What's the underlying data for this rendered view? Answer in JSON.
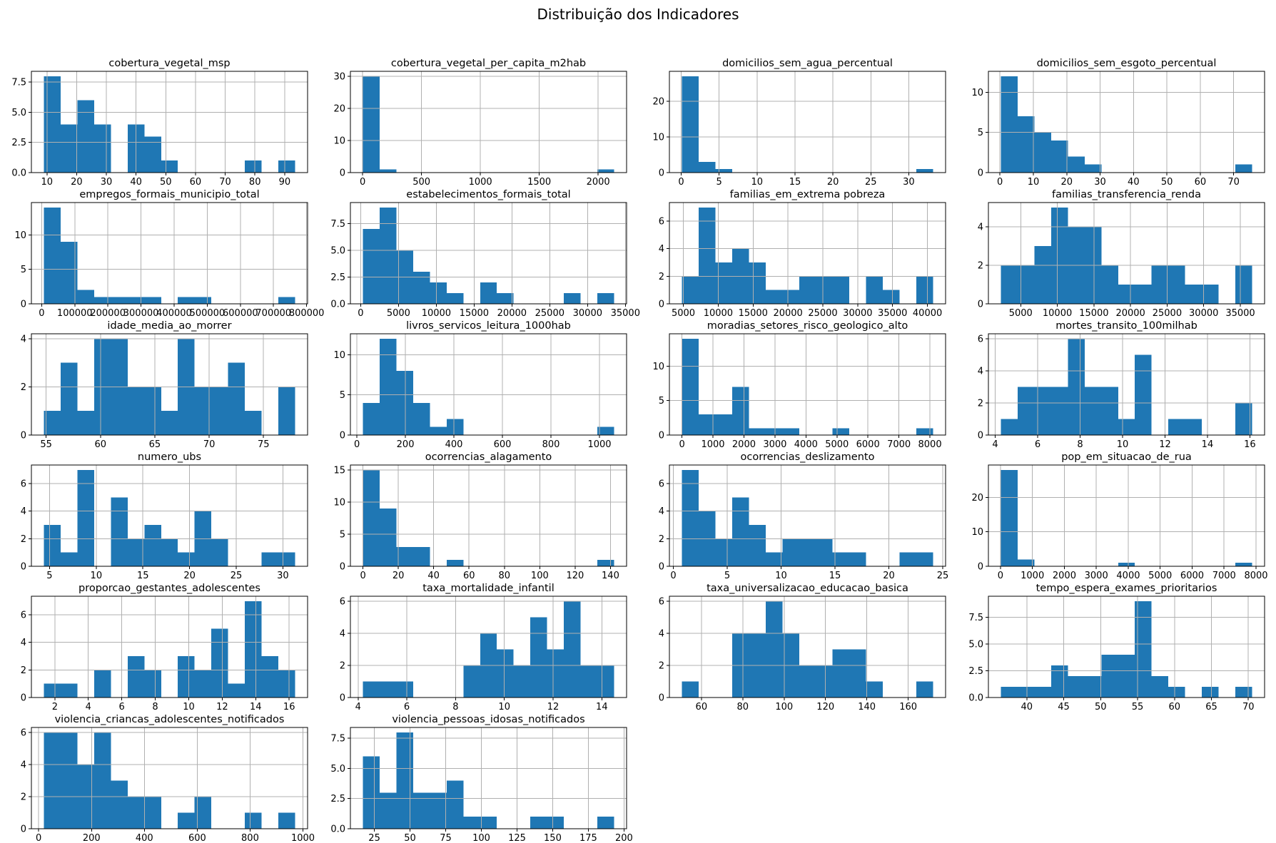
{
  "figure": {
    "suptitle": "Distribuição dos Indicadores",
    "bar_color": "#1f77b4",
    "grid_color": "#b0b0b0",
    "spine_color": "#000000",
    "text_color": "#000000"
  },
  "chart_data": [
    {
      "type": "histogram",
      "bins": 15,
      "title": "cobertura_vegetal_msp",
      "xmin": 9,
      "xmax": 93.5,
      "counts": [
        8,
        4,
        6,
        4,
        0,
        4,
        3,
        1,
        0,
        0,
        0,
        0,
        1,
        0,
        1
      ],
      "xticks": [
        10,
        20,
        30,
        40,
        50,
        60,
        70,
        80,
        90
      ],
      "yticks": [
        0,
        2.5,
        5,
        7.5
      ],
      "ydec": 1
    },
    {
      "type": "histogram",
      "bins": 15,
      "title": "cobertura_vegetal_per_capita_m2hab",
      "xmin": 3,
      "xmax": 2135,
      "counts": [
        30,
        1,
        0,
        0,
        0,
        0,
        0,
        0,
        0,
        0,
        0,
        0,
        0,
        0,
        1
      ],
      "xticks": [
        0,
        500,
        1000,
        1500,
        2000
      ],
      "yticks": [
        0,
        10,
        20,
        30
      ],
      "ydec": 0
    },
    {
      "type": "histogram",
      "bins": 15,
      "title": "domicilios_sem_agua_percentual",
      "xmin": 0.1,
      "xmax": 33.2,
      "counts": [
        27,
        3,
        1,
        0,
        0,
        0,
        0,
        0,
        0,
        0,
        0,
        0,
        0,
        0,
        1
      ],
      "xticks": [
        0,
        5,
        10,
        15,
        20,
        25,
        30
      ],
      "yticks": [
        0,
        10,
        20
      ],
      "ydec": 0
    },
    {
      "type": "histogram",
      "bins": 15,
      "title": "domicilios_sem_esgoto_percentual",
      "xmin": 0.3,
      "xmax": 75.5,
      "counts": [
        12,
        7,
        5,
        4,
        2,
        1,
        0,
        0,
        0,
        0,
        0,
        0,
        0,
        0,
        1
      ],
      "xticks": [
        0,
        10,
        20,
        30,
        40,
        50,
        60,
        70
      ],
      "yticks": [
        0,
        5,
        10
      ],
      "ydec": 0
    },
    {
      "type": "histogram",
      "bins": 15,
      "title": "empregos_formais_municipio_total",
      "xmin": 7000,
      "xmax": 765000,
      "counts": [
        14,
        9,
        2,
        1,
        1,
        1,
        1,
        0,
        1,
        1,
        0,
        0,
        0,
        0,
        1
      ],
      "xticks": [
        0,
        100000,
        200000,
        300000,
        400000,
        500000,
        600000,
        700000,
        800000
      ],
      "yticks": [
        0,
        5,
        10
      ],
      "ydec": 0
    },
    {
      "type": "histogram",
      "bins": 15,
      "title": "estabelecimentos_formais_total",
      "xmin": 300,
      "xmax": 33500,
      "counts": [
        7,
        9,
        5,
        3,
        2,
        1,
        0,
        2,
        1,
        0,
        0,
        0,
        1,
        0,
        1
      ],
      "xticks": [
        0,
        5000,
        10000,
        15000,
        20000,
        25000,
        30000,
        35000
      ],
      "yticks": [
        0,
        2.5,
        5,
        7.5
      ],
      "ydec": 1
    },
    {
      "type": "histogram",
      "bins": 15,
      "title": "familias_em_extrema pobreza",
      "xmin": 4800,
      "xmax": 40800,
      "counts": [
        2,
        7,
        3,
        4,
        3,
        1,
        1,
        2,
        2,
        2,
        0,
        2,
        1,
        0,
        2
      ],
      "xticks": [
        5000,
        10000,
        15000,
        20000,
        25000,
        30000,
        35000,
        40000
      ],
      "yticks": [
        0,
        2,
        4,
        6
      ],
      "ydec": 0
    },
    {
      "type": "histogram",
      "bins": 15,
      "title": "familias_transferencia_renda",
      "xmin": 2300,
      "xmax": 36600,
      "counts": [
        2,
        2,
        3,
        5,
        4,
        4,
        2,
        1,
        1,
        2,
        2,
        1,
        1,
        0,
        2
      ],
      "xticks": [
        5000,
        10000,
        15000,
        20000,
        25000,
        30000,
        35000
      ],
      "yticks": [
        0,
        2,
        4
      ],
      "ydec": 0
    },
    {
      "type": "histogram",
      "bins": 15,
      "title": "idade_media_ao_morrer",
      "xmin": 54.8,
      "xmax": 77.9,
      "counts": [
        1,
        3,
        1,
        4,
        4,
        2,
        2,
        1,
        4,
        2,
        2,
        3,
        1,
        0,
        2
      ],
      "xticks": [
        55,
        60,
        65,
        70,
        75
      ],
      "yticks": [
        0,
        2,
        4
      ],
      "ydec": 0
    },
    {
      "type": "histogram",
      "bins": 15,
      "title": "livros_servicos_leitura_1000hab",
      "xmin": 25,
      "xmax": 1060,
      "counts": [
        4,
        12,
        8,
        4,
        1,
        2,
        0,
        0,
        0,
        0,
        0,
        0,
        0,
        0,
        1
      ],
      "xticks": [
        0,
        200,
        400,
        600,
        800,
        1000
      ],
      "yticks": [
        0,
        5,
        10
      ],
      "ydec": 0
    },
    {
      "type": "histogram",
      "bins": 15,
      "title": "moradias_setores_risco_geologico_alto",
      "xmin": 0,
      "xmax": 8100,
      "counts": [
        14,
        3,
        3,
        7,
        1,
        1,
        1,
        0,
        0,
        1,
        0,
        0,
        0,
        0,
        1
      ],
      "xticks": [
        0,
        1000,
        2000,
        3000,
        4000,
        5000,
        6000,
        7000,
        8000
      ],
      "yticks": [
        0,
        5,
        10
      ],
      "ydec": 0
    },
    {
      "type": "histogram",
      "bins": 15,
      "title": "mortes_transito_100milhab",
      "xmin": 4.27,
      "xmax": 16.1,
      "counts": [
        1,
        3,
        3,
        3,
        6,
        3,
        3,
        1,
        5,
        0,
        1,
        1,
        0,
        0,
        2
      ],
      "xticks": [
        4,
        6,
        8,
        10,
        12,
        14,
        16
      ],
      "yticks": [
        0,
        2,
        4,
        6
      ],
      "ydec": 0
    },
    {
      "type": "histogram",
      "bins": 15,
      "title": "numero_ubs",
      "xmin": 4.4,
      "xmax": 31.3,
      "counts": [
        3,
        1,
        7,
        0,
        5,
        2,
        3,
        2,
        1,
        4,
        2,
        0,
        0,
        1,
        1
      ],
      "xticks": [
        5,
        10,
        15,
        20,
        25,
        30
      ],
      "yticks": [
        0,
        2,
        4,
        6
      ],
      "ydec": 0
    },
    {
      "type": "histogram",
      "bins": 15,
      "title": "ocorrencias_alagamento",
      "xmin": 0,
      "xmax": 142,
      "counts": [
        15,
        9,
        3,
        3,
        0,
        1,
        0,
        0,
        0,
        0,
        0,
        0,
        0,
        0,
        1
      ],
      "xticks": [
        0,
        20,
        40,
        60,
        80,
        100,
        120,
        140
      ],
      "yticks": [
        0,
        5,
        10,
        15
      ],
      "ydec": 0
    },
    {
      "type": "histogram",
      "bins": 15,
      "title": "ocorrencias_deslizamento",
      "xmin": 0.8,
      "xmax": 24.1,
      "counts": [
        7,
        4,
        2,
        5,
        3,
        1,
        2,
        2,
        2,
        1,
        1,
        0,
        0,
        1,
        1
      ],
      "xticks": [
        0,
        5,
        10,
        15,
        20,
        25
      ],
      "yticks": [
        0,
        2,
        4,
        6
      ],
      "ydec": 0
    },
    {
      "type": "histogram",
      "bins": 15,
      "title": "pop_em_situacao_de_rua",
      "xmin": 15,
      "xmax": 7875,
      "counts": [
        28,
        2,
        0,
        0,
        0,
        0,
        0,
        1,
        0,
        0,
        0,
        0,
        0,
        0,
        1
      ],
      "xticks": [
        0,
        1000,
        2000,
        3000,
        4000,
        5000,
        6000,
        7000,
        8000
      ],
      "yticks": [
        0,
        10,
        20
      ],
      "ydec": 0
    },
    {
      "type": "histogram",
      "bins": 15,
      "title": "proporcao_gestantes_adolescentes",
      "xmin": 1.35,
      "xmax": 16.35,
      "counts": [
        1,
        1,
        0,
        2,
        0,
        3,
        2,
        0,
        3,
        2,
        5,
        1,
        7,
        3,
        2
      ],
      "xticks": [
        2,
        4,
        6,
        8,
        10,
        12,
        14,
        16
      ],
      "yticks": [
        0,
        2,
        4,
        6
      ],
      "ydec": 0
    },
    {
      "type": "histogram",
      "bins": 15,
      "title": "taxa_mortalidade_infantil",
      "xmin": 4.2,
      "xmax": 14.5,
      "counts": [
        1,
        1,
        1,
        0,
        0,
        0,
        2,
        4,
        3,
        2,
        5,
        3,
        6,
        2,
        2
      ],
      "xticks": [
        4,
        6,
        8,
        10,
        12,
        14
      ],
      "yticks": [
        0,
        2,
        4,
        6
      ],
      "ydec": 0
    },
    {
      "type": "histogram",
      "bins": 15,
      "title": "taxa_universalizacao_educacao_basica",
      "xmin": 50.6,
      "xmax": 172,
      "counts": [
        1,
        0,
        0,
        4,
        4,
        6,
        4,
        2,
        2,
        3,
        3,
        1,
        0,
        0,
        1
      ],
      "xticks": [
        60,
        80,
        100,
        120,
        140,
        160
      ],
      "yticks": [
        0,
        2,
        4,
        6
      ],
      "ydec": 0
    },
    {
      "type": "histogram",
      "bins": 15,
      "title": "tempo_espera_exames_prioritarios",
      "xmin": 36.5,
      "xmax": 70.5,
      "counts": [
        1,
        1,
        1,
        3,
        2,
        2,
        4,
        4,
        9,
        2,
        1,
        0,
        1,
        0,
        1
      ],
      "xticks": [
        40,
        45,
        50,
        55,
        60,
        65,
        70
      ],
      "yticks": [
        0,
        2.5,
        5,
        7.5
      ],
      "ydec": 1
    },
    {
      "type": "histogram",
      "bins": 15,
      "title": "violencia_criancas_adolescentes_notificados",
      "xmin": 20,
      "xmax": 970,
      "counts": [
        6,
        6,
        4,
        6,
        3,
        2,
        2,
        0,
        1,
        2,
        0,
        0,
        1,
        0,
        1
      ],
      "xticks": [
        0,
        200,
        400,
        600,
        800,
        1000
      ],
      "yticks": [
        0,
        2,
        4,
        6
      ],
      "ydec": 0
    },
    {
      "type": "histogram",
      "bins": 15,
      "title": "violencia_pessoas_idosas_notificados",
      "xmin": 17,
      "xmax": 193,
      "counts": [
        6,
        3,
        8,
        3,
        3,
        4,
        1,
        1,
        0,
        0,
        1,
        1,
        0,
        0,
        1
      ],
      "xticks": [
        25,
        50,
        75,
        100,
        125,
        150,
        175,
        200
      ],
      "yticks": [
        0,
        2.5,
        5,
        7.5
      ],
      "ydec": 1
    }
  ]
}
